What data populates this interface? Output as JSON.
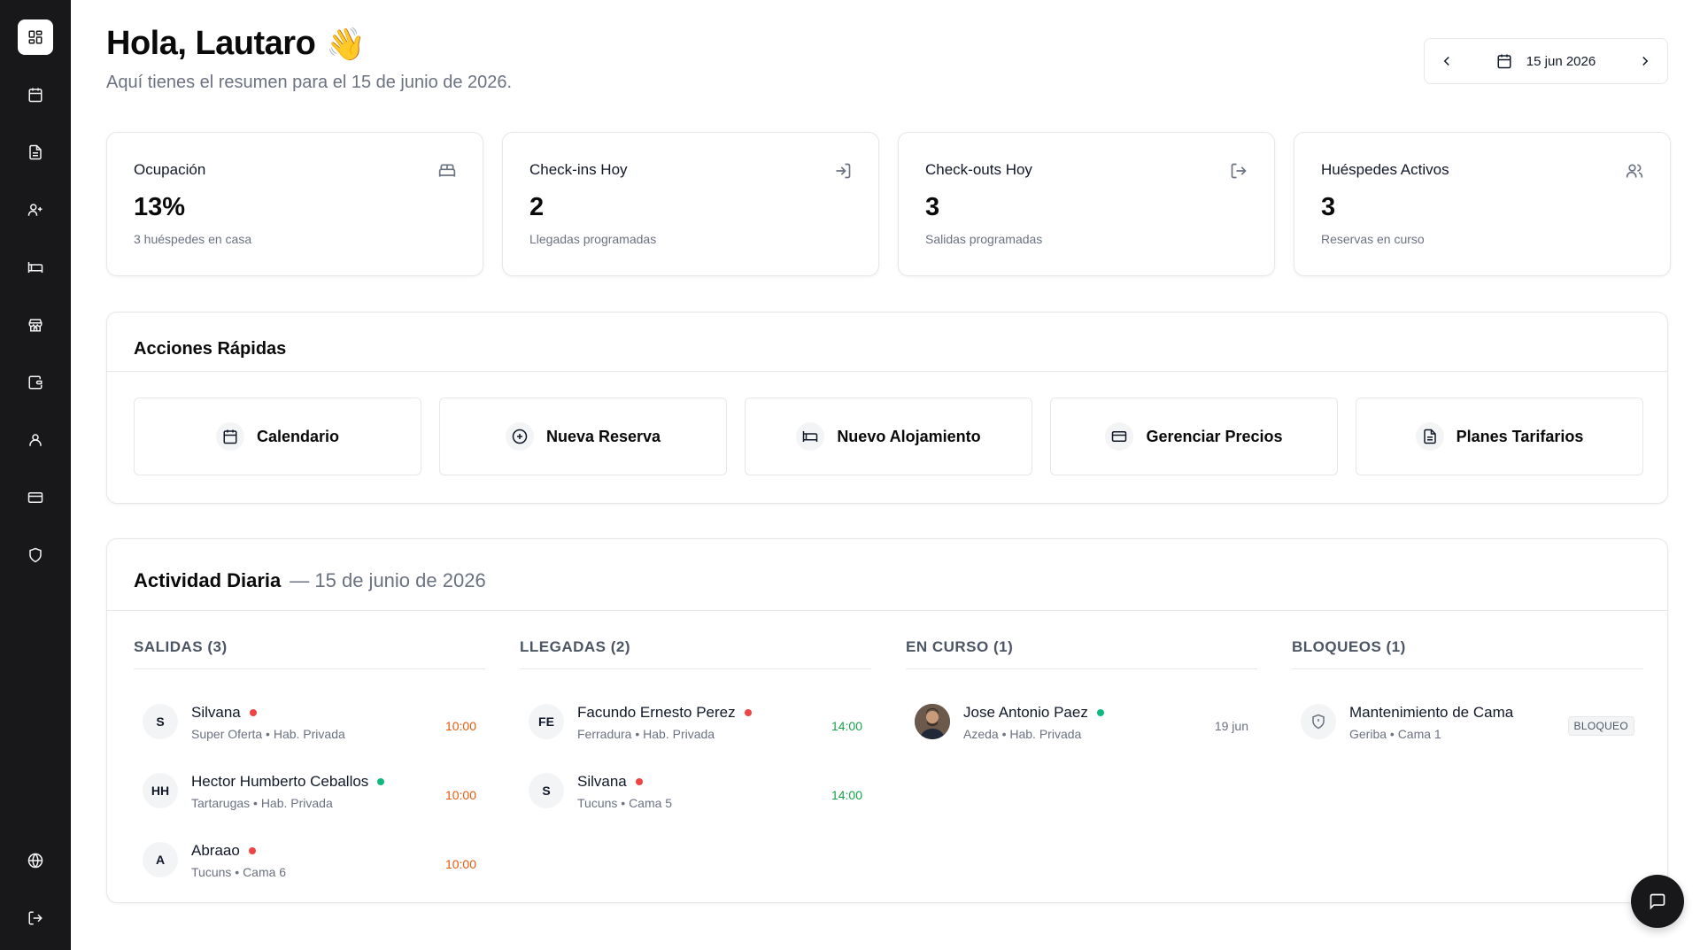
{
  "sidebar": {
    "items": [
      {
        "icon": "dashboard-icon"
      },
      {
        "icon": "calendar-icon"
      },
      {
        "icon": "document-icon"
      },
      {
        "icon": "user-plus-icon"
      },
      {
        "icon": "bed-icon"
      },
      {
        "icon": "store-icon"
      },
      {
        "icon": "wallet-icon"
      },
      {
        "icon": "user-icon"
      },
      {
        "icon": "credit-card-icon"
      },
      {
        "icon": "shield-icon"
      }
    ],
    "bottom": [
      {
        "icon": "globe-icon"
      },
      {
        "icon": "logout-icon"
      }
    ]
  },
  "header": {
    "greeting": "Hola, Lautaro",
    "wave": "👋",
    "subtitle": "Aquí tienes el resumen para el 15 de junio de 2026."
  },
  "date_picker": {
    "value": "15 jun 2026"
  },
  "stats": [
    {
      "label": "Ocupación",
      "value": "13%",
      "desc": "3 huéspedes en casa",
      "icon": "bed-icon"
    },
    {
      "label": "Check-ins Hoy",
      "value": "2",
      "desc": "Llegadas programadas",
      "icon": "login-icon"
    },
    {
      "label": "Check-outs Hoy",
      "value": "3",
      "desc": "Salidas programadas",
      "icon": "logout-icon"
    },
    {
      "label": "Huéspedes Activos",
      "value": "3",
      "desc": "Reservas en curso",
      "icon": "users-icon"
    }
  ],
  "quick_actions": {
    "title": "Acciones Rápidas",
    "items": [
      {
        "label": "Calendario",
        "icon": "calendar-icon"
      },
      {
        "label": "Nueva Reserva",
        "icon": "plus-circle-icon"
      },
      {
        "label": "Nuevo Alojamiento",
        "icon": "bed-icon"
      },
      {
        "label": "Gerenciar Precios",
        "icon": "credit-card-icon"
      },
      {
        "label": "Planes Tarifarios",
        "icon": "document-icon"
      }
    ]
  },
  "activity": {
    "title": "Actividad Diaria",
    "date": "— 15 de junio de 2026",
    "salidas": {
      "heading": "SALIDAS (3)",
      "items": [
        {
          "initials": "S",
          "name": "Silvana",
          "meta": "Super Oferta • Hab. Privada",
          "time": "10:00",
          "status": "red"
        },
        {
          "initials": "HH",
          "name": "Hector Humberto Ceballos",
          "meta": "Tartarugas • Hab. Privada",
          "time": "10:00",
          "status": "green"
        },
        {
          "initials": "A",
          "name": "Abraao",
          "meta": "Tucuns • Cama 6",
          "time": "10:00",
          "status": "red"
        }
      ]
    },
    "llegadas": {
      "heading": "LLEGADAS (2)",
      "items": [
        {
          "initials": "FE",
          "name": "Facundo Ernesto Perez",
          "meta": "Ferradura • Hab. Privada",
          "time": "14:00",
          "status": "red"
        },
        {
          "initials": "S",
          "name": "Silvana",
          "meta": "Tucuns • Cama 5",
          "time": "14:00",
          "status": "red"
        }
      ]
    },
    "en_curso": {
      "heading": "EN CURSO (1)",
      "items": [
        {
          "name": "Jose Antonio Paez",
          "meta": "Azeda • Hab. Privada",
          "time": "19 jun",
          "status": "green"
        }
      ]
    },
    "bloqueos": {
      "heading": "BLOQUEOS (1)",
      "items": [
        {
          "name": "Mantenimiento de Cama",
          "meta": "Geriba • Cama 1",
          "badge": "BLOQUEO"
        }
      ]
    }
  },
  "colors": {
    "sidebar_bg": "#18181b",
    "status_red": "#ef4444",
    "status_green": "#10b981",
    "time_orange": "#ea580c",
    "time_green": "#16a34a"
  }
}
